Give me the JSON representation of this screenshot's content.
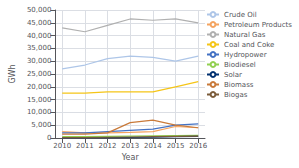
{
  "chart_data": {
    "type": "line",
    "x": [
      2010,
      2011,
      2012,
      2013,
      2014,
      2015,
      2016
    ],
    "xlabel": "Year",
    "ylabel": "GWh",
    "series": [
      {
        "name": "Crude Oil",
        "color": "#aec6e8",
        "values": [
          27000,
          28500,
          31000,
          32000,
          31500,
          30000,
          32000
        ]
      },
      {
        "name": "Petroleum Products",
        "color": "#f4a460",
        "values": [
          2500,
          2000,
          2000,
          2200,
          2500,
          4500,
          4000
        ]
      },
      {
        "name": "Natural Gas",
        "color": "#b0b0b0",
        "values": [
          43000,
          41500,
          44000,
          46500,
          46000,
          46500,
          45000
        ]
      },
      {
        "name": "Coal and Coke",
        "color": "#f5c518",
        "values": [
          17500,
          17500,
          18000,
          18000,
          18000,
          20000,
          22000
        ]
      },
      {
        "name": "Hydropower",
        "color": "#4472c4",
        "values": [
          2000,
          2000,
          2500,
          3000,
          3500,
          5000,
          5500
        ]
      },
      {
        "name": "Biodiesel",
        "color": "#92d050",
        "values": [
          500,
          500,
          600,
          700,
          800,
          900,
          1000
        ]
      },
      {
        "name": "Solar",
        "color": "#003070",
        "values": [
          100,
          100,
          150,
          200,
          300,
          500,
          600
        ]
      },
      {
        "name": "Biomass",
        "color": "#c97a3a",
        "values": [
          1500,
          1500,
          2000,
          6000,
          7000,
          5000,
          4000
        ]
      },
      {
        "name": "Biogas",
        "color": "#7b5c3a",
        "values": [
          200,
          200,
          300,
          400,
          500,
          600,
          700
        ]
      }
    ],
    "xlim": [
      2009.7,
      2016.3
    ],
    "xticks": [
      2010,
      2011,
      2012,
      2013,
      2014,
      2015,
      2016
    ],
    "ylim": [
      0,
      50000
    ],
    "yticks": [
      0,
      {
        "value": 5000,
        "label": "5,000"
      },
      {
        "value": 10000,
        "label": "10,000"
      },
      {
        "value": 15000,
        "label": "15,000"
      },
      {
        "value": 20000,
        "label": "20,000"
      },
      {
        "value": 25000,
        "label": "25,000"
      },
      {
        "value": 30000,
        "label": "30,000"
      },
      {
        "value": 35000,
        "label": "35,000"
      },
      {
        "value": 40000,
        "label": "40,000"
      },
      {
        "value": 45000,
        "label": "45,000"
      },
      {
        "value": 50000,
        "label": "50,000"
      }
    ],
    "grid": true,
    "legend": "right"
  }
}
